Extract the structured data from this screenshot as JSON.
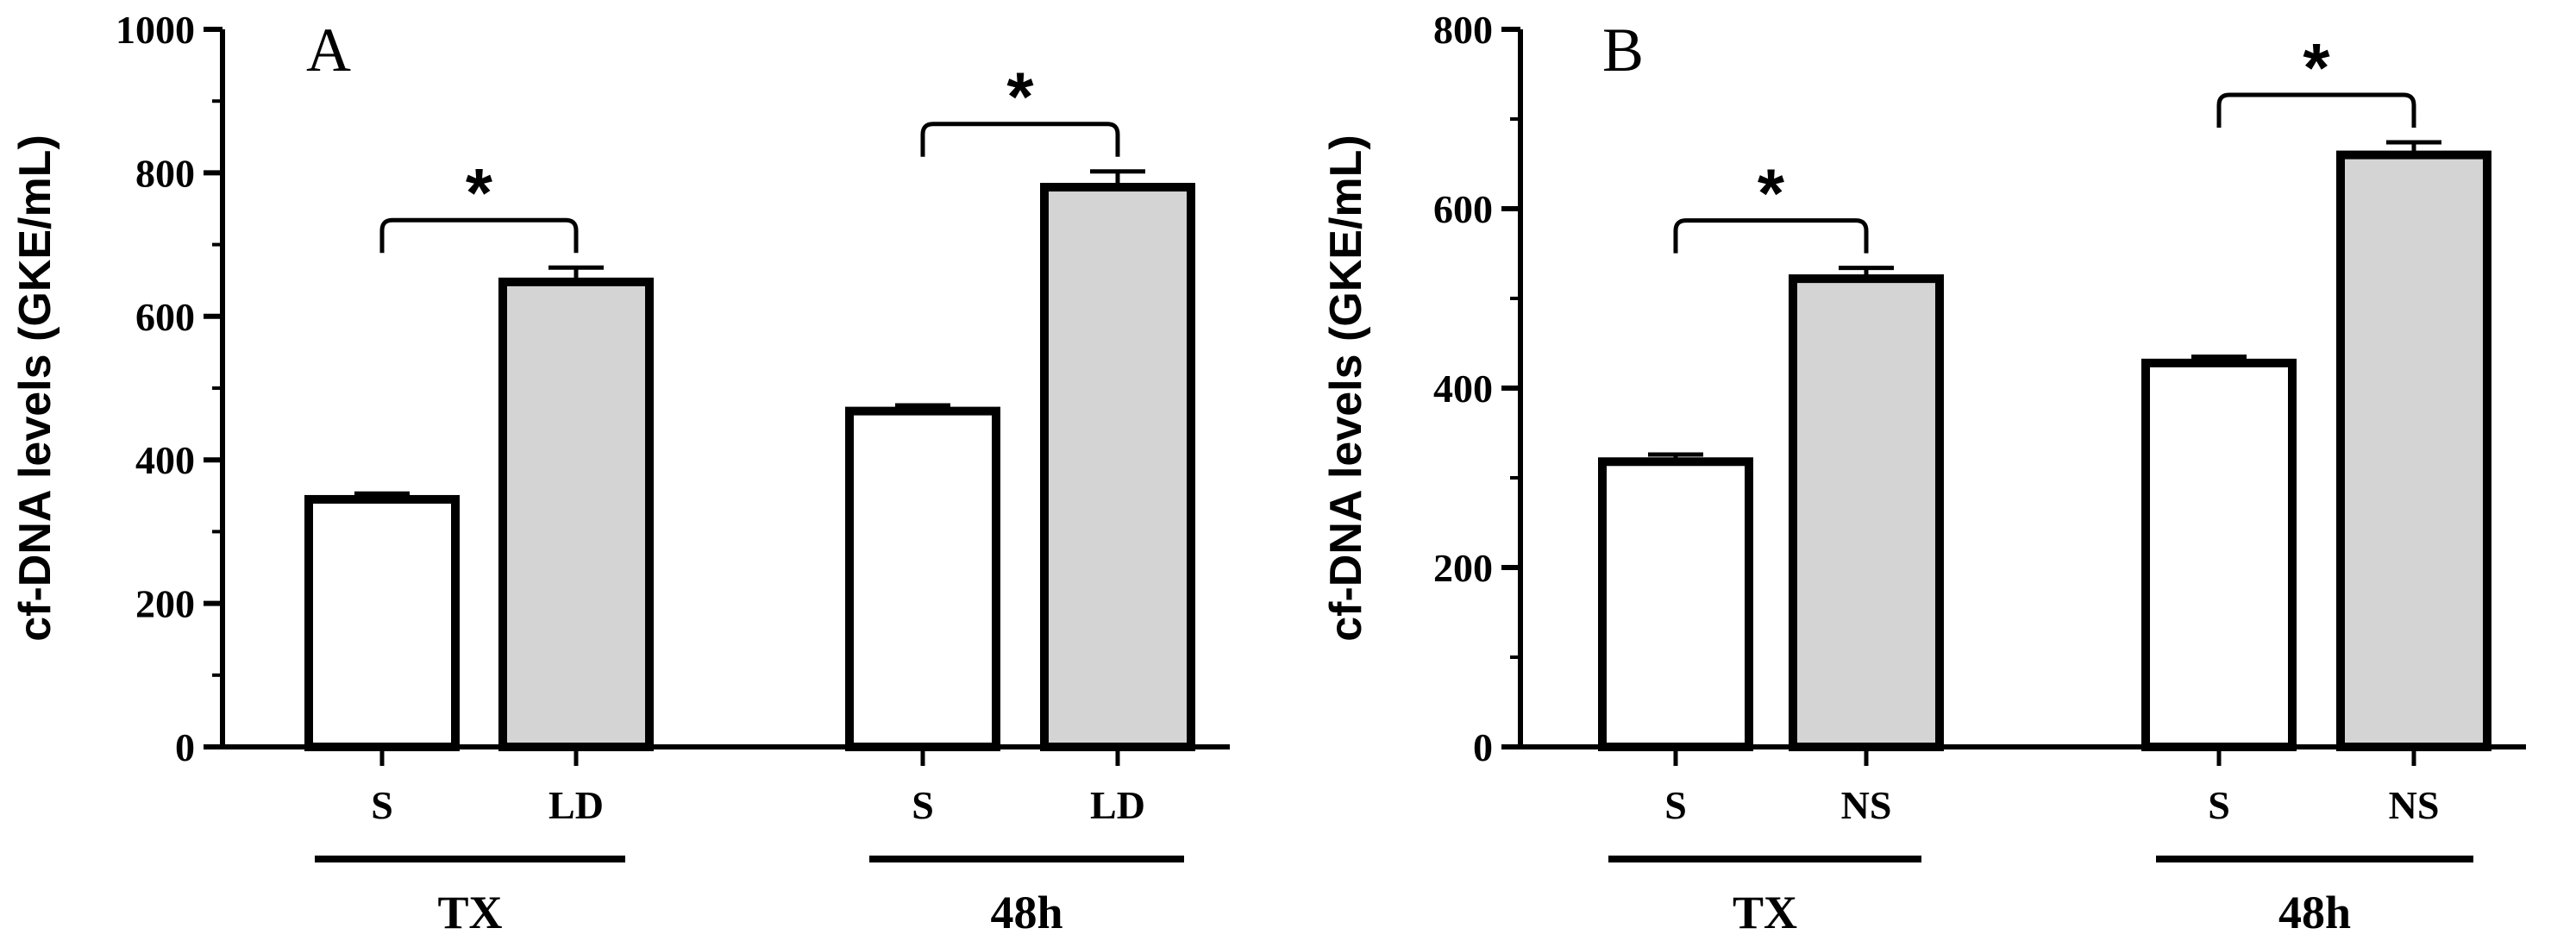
{
  "chart_data": [
    {
      "type": "bar",
      "panel": "A",
      "ylabel": "cf-DNA levels (GKE/mL)",
      "xlabel": "",
      "ylim": [
        0,
        1000
      ],
      "yticks": [
        "0",
        "200",
        "400",
        "600",
        "800",
        "1000"
      ],
      "groups": [
        {
          "label": "TX",
          "significance": "*",
          "bars": [
            {
              "category": "S",
              "value": 345,
              "error": 8,
              "fill": "#ffffff"
            },
            {
              "category": "LD",
              "value": 648,
              "error": 20,
              "fill": "#d4d4d4"
            }
          ]
        },
        {
          "label": "48h",
          "significance": "*",
          "bars": [
            {
              "category": "S",
              "value": 468,
              "error": 8,
              "fill": "#ffffff"
            },
            {
              "category": "LD",
              "value": 780,
              "error": 22,
              "fill": "#d4d4d4"
            }
          ]
        }
      ]
    },
    {
      "type": "bar",
      "panel": "B",
      "ylabel": "cf-DNA levels (GKE/mL)",
      "xlabel": "",
      "ylim": [
        0,
        800
      ],
      "yticks": [
        "0",
        "200",
        "400",
        "600",
        "800"
      ],
      "groups": [
        {
          "label": "TX",
          "significance": "*",
          "bars": [
            {
              "category": "S",
              "value": 318,
              "error": 8,
              "fill": "#ffffff"
            },
            {
              "category": "NS",
              "value": 522,
              "error": 12,
              "fill": "#d4d4d4"
            }
          ]
        },
        {
          "label": "48h",
          "significance": "*",
          "bars": [
            {
              "category": "S",
              "value": 428,
              "error": 7,
              "fill": "#ffffff"
            },
            {
              "category": "NS",
              "value": 660,
              "error": 14,
              "fill": "#d4d4d4"
            }
          ]
        }
      ]
    }
  ]
}
